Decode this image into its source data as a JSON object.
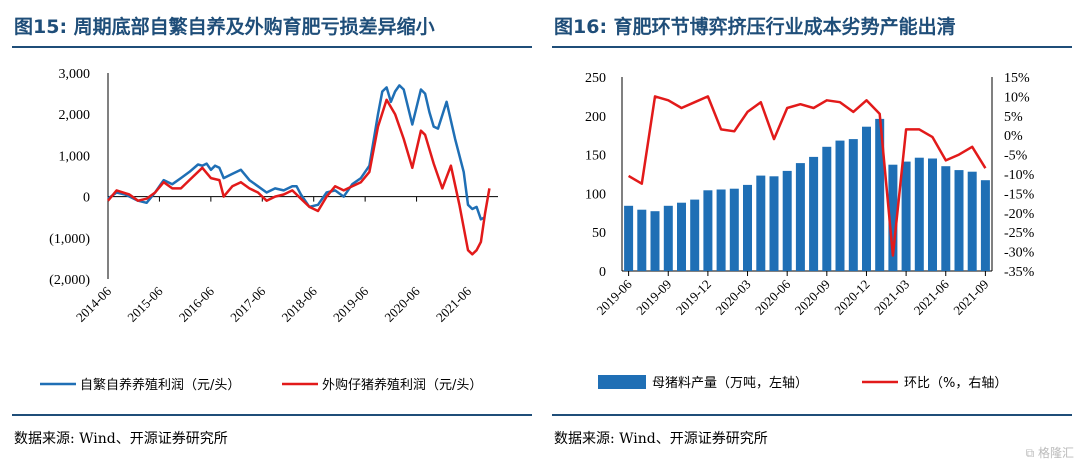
{
  "left": {
    "title": "图15:  周期底部自繁自养及外购育肥亏损差异缩小",
    "source": "数据来源: Wind、开源证券研究所",
    "chart_data": {
      "type": "line",
      "title": "周期底部自繁自养及外购育肥亏损差异缩小",
      "ylim": [
        -2000,
        3000
      ],
      "y_ticks": [
        "3,000",
        "2,000",
        "1,000",
        "0",
        "(1,000)",
        "(2,000)"
      ],
      "y_tick_values": [
        3000,
        2000,
        1000,
        0,
        -1000,
        -2000
      ],
      "x_ticks": [
        "2014-06",
        "2015-06",
        "2016-06",
        "2017-06",
        "2018-06",
        "2019-06",
        "2020-06",
        "2021-06"
      ],
      "x_range": [
        "2014-06",
        "2022-01"
      ],
      "series": [
        {
          "name": "自繁自养养殖利润（元/头）",
          "color": "#1f6fb5",
          "points": [
            [
              "2014-06",
              -50
            ],
            [
              "2014-08",
              100
            ],
            [
              "2014-10",
              50
            ],
            [
              "2015-01",
              -100
            ],
            [
              "2015-03",
              -150
            ],
            [
              "2015-05",
              100
            ],
            [
              "2015-07",
              400
            ],
            [
              "2015-09",
              300
            ],
            [
              "2015-11",
              450
            ],
            [
              "2016-01",
              600
            ],
            [
              "2016-03",
              780
            ],
            [
              "2016-04",
              750
            ],
            [
              "2016-05",
              800
            ],
            [
              "2016-06",
              650
            ],
            [
              "2016-07",
              750
            ],
            [
              "2016-08",
              700
            ],
            [
              "2016-09",
              450
            ],
            [
              "2016-11",
              550
            ],
            [
              "2017-01",
              650
            ],
            [
              "2017-03",
              400
            ],
            [
              "2017-05",
              250
            ],
            [
              "2017-07",
              100
            ],
            [
              "2017-09",
              200
            ],
            [
              "2017-11",
              150
            ],
            [
              "2018-01",
              250
            ],
            [
              "2018-02",
              250
            ],
            [
              "2018-03",
              50
            ],
            [
              "2018-05",
              -250
            ],
            [
              "2018-07",
              -200
            ],
            [
              "2018-09",
              100
            ],
            [
              "2018-11",
              150
            ],
            [
              "2019-01",
              0
            ],
            [
              "2019-03",
              300
            ],
            [
              "2019-05",
              450
            ],
            [
              "2019-07",
              750
            ],
            [
              "2019-09",
              2000
            ],
            [
              "2019-10",
              2550
            ],
            [
              "2019-11",
              2650
            ],
            [
              "2019-12",
              2300
            ],
            [
              "2020-01",
              2550
            ],
            [
              "2020-02",
              2700
            ],
            [
              "2020-03",
              2600
            ],
            [
              "2020-05",
              1750
            ],
            [
              "2020-07",
              2600
            ],
            [
              "2020-08",
              2500
            ],
            [
              "2020-09",
              2050
            ],
            [
              "2020-10",
              1700
            ],
            [
              "2020-11",
              1650
            ],
            [
              "2021-01",
              2300
            ],
            [
              "2021-03",
              1400
            ],
            [
              "2021-05",
              600
            ],
            [
              "2021-06",
              -200
            ],
            [
              "2021-07",
              -300
            ],
            [
              "2021-08",
              -250
            ],
            [
              "2021-09",
              -550
            ],
            [
              "2021-10",
              -500
            ]
          ]
        },
        {
          "name": "外购仔猪养殖利润（元/头）",
          "color": "#e21a1a",
          "points": [
            [
              "2014-06",
              -100
            ],
            [
              "2014-08",
              150
            ],
            [
              "2014-11",
              50
            ],
            [
              "2015-01",
              -100
            ],
            [
              "2015-03",
              -50
            ],
            [
              "2015-05",
              100
            ],
            [
              "2015-07",
              350
            ],
            [
              "2015-09",
              200
            ],
            [
              "2015-11",
              200
            ],
            [
              "2016-01",
              400
            ],
            [
              "2016-04",
              700
            ],
            [
              "2016-06",
              450
            ],
            [
              "2016-08",
              400
            ],
            [
              "2016-09",
              0
            ],
            [
              "2016-11",
              250
            ],
            [
              "2017-01",
              350
            ],
            [
              "2017-03",
              200
            ],
            [
              "2017-05",
              100
            ],
            [
              "2017-07",
              -100
            ],
            [
              "2017-09",
              0
            ],
            [
              "2017-11",
              50
            ],
            [
              "2018-01",
              150
            ],
            [
              "2018-03",
              -50
            ],
            [
              "2018-05",
              -250
            ],
            [
              "2018-07",
              -350
            ],
            [
              "2018-09",
              0
            ],
            [
              "2018-11",
              250
            ],
            [
              "2019-01",
              150
            ],
            [
              "2019-03",
              250
            ],
            [
              "2019-05",
              350
            ],
            [
              "2019-07",
              600
            ],
            [
              "2019-09",
              1700
            ],
            [
              "2019-11",
              2350
            ],
            [
              "2020-01",
              2000
            ],
            [
              "2020-03",
              1400
            ],
            [
              "2020-05",
              700
            ],
            [
              "2020-07",
              1600
            ],
            [
              "2020-08",
              1500
            ],
            [
              "2020-10",
              800
            ],
            [
              "2020-12",
              200
            ],
            [
              "2021-02",
              750
            ],
            [
              "2021-04",
              -200
            ],
            [
              "2021-06",
              -1300
            ],
            [
              "2021-07",
              -1400
            ],
            [
              "2021-08",
              -1300
            ],
            [
              "2021-09",
              -1100
            ],
            [
              "2021-10",
              -400
            ],
            [
              "2021-11",
              200
            ]
          ]
        }
      ]
    }
  },
  "right": {
    "title": "图16:  育肥环节博弈挤压行业成本劣势产能出清",
    "source": "数据来源: Wind、开源证券研究所",
    "chart_data": {
      "type": "bar",
      "title": "育肥环节博弈挤压行业成本劣势产能出清",
      "categories": [
        "2019-06",
        "2019-07",
        "2019-08",
        "2019-09",
        "2019-10",
        "2019-11",
        "2019-12",
        "2020-01",
        "2020-02",
        "2020-03",
        "2020-04",
        "2020-05",
        "2020-06",
        "2020-07",
        "2020-08",
        "2020-09",
        "2020-10",
        "2020-11",
        "2020-12",
        "2021-01",
        "2021-02",
        "2021-03",
        "2021-04",
        "2021-05",
        "2021-06",
        "2021-07",
        "2021-08",
        "2021-09"
      ],
      "x_ticks": [
        "2019-06",
        "2019-09",
        "2019-12",
        "2020-03",
        "2020-06",
        "2020-09",
        "2020-12",
        "2021-03",
        "2021-06",
        "2021-09"
      ],
      "left_axis": {
        "ylim": [
          0,
          250
        ],
        "ticks": [
          "250",
          "200",
          "150",
          "100",
          "50",
          "0"
        ],
        "tick_values": [
          250,
          200,
          150,
          100,
          50,
          0
        ]
      },
      "right_axis": {
        "ylim": [
          -35,
          15
        ],
        "ticks": [
          "15%",
          "10%",
          "5%",
          "0%",
          "-5%",
          "-10%",
          "-15%",
          "-20%",
          "-25%",
          "-30%",
          "-35%"
        ],
        "tick_values": [
          15,
          10,
          5,
          0,
          -5,
          -10,
          -15,
          -20,
          -25,
          -30,
          -35
        ]
      },
      "series": [
        {
          "name": "母猪料产量（万吨，左轴）",
          "kind": "bar",
          "axis": "left",
          "color": "#1f6fb5",
          "values": [
            84,
            79,
            77,
            84,
            88,
            92,
            104,
            105,
            106,
            111,
            123,
            122,
            129,
            139,
            147,
            160,
            168,
            170,
            186,
            196,
            137,
            141,
            146,
            145,
            135,
            130,
            128,
            117
          ]
        },
        {
          "name": "环比（%，右轴）",
          "kind": "line",
          "axis": "right",
          "color": "#e21a1a",
          "values": [
            -10.5,
            -12.5,
            10,
            9,
            7,
            8.5,
            10,
            1.5,
            1,
            6,
            8.5,
            -1,
            7,
            8,
            7,
            9,
            8.5,
            6,
            9,
            5.5,
            -31,
            1.5,
            1.5,
            -0.5,
            -6.5,
            -5,
            -3,
            -8.5
          ]
        }
      ]
    }
  },
  "watermark": "格隆汇"
}
